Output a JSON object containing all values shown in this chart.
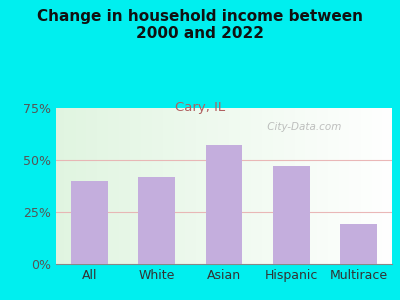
{
  "title": "Change in household income between\n2000 and 2022",
  "subtitle": "Cary, IL",
  "categories": [
    "All",
    "White",
    "Asian",
    "Hispanic",
    "Multirace"
  ],
  "values": [
    40,
    42,
    57,
    47,
    19
  ],
  "bar_color": "#c4aedd",
  "background_color": "#00efef",
  "plot_bg_color": "#e8f5e2",
  "title_fontsize": 11,
  "subtitle_fontsize": 9.5,
  "subtitle_color": "#b06060",
  "tick_label_fontsize": 9,
  "ytick_label_color": "#555555",
  "xtick_label_color": "#333333",
  "ylim": [
    0,
    75
  ],
  "yticks": [
    0,
    25,
    50,
    75
  ],
  "watermark": " City-Data.com",
  "watermark_color": "#aaaaaa",
  "hline_color": "#e8b0b0",
  "hline_alpha": 0.9
}
